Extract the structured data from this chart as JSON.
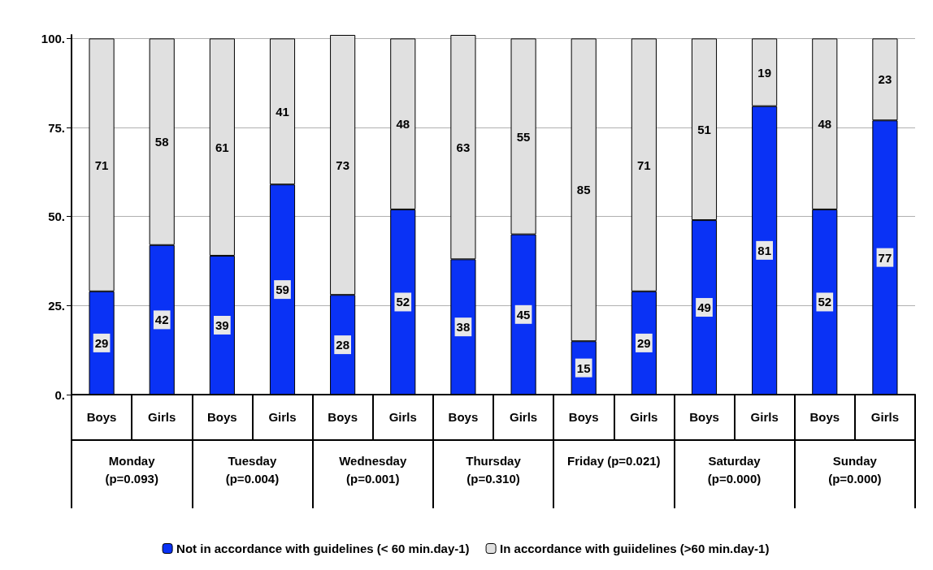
{
  "chart_data": {
    "type": "bar",
    "stacked": true,
    "categories": [
      "Boys",
      "Girls",
      "Boys",
      "Girls",
      "Boys",
      "Girls",
      "Boys",
      "Girls",
      "Boys",
      "Girls",
      "Boys",
      "Girls",
      "Boys",
      "Girls"
    ],
    "annotations": [
      "Monday\n(p=0.093)",
      "Tuesday\n(p=0.004)",
      "Wednesday\n(p=0.001)",
      "Thursday\n(p=0.310)",
      "Friday (p=0.021)",
      "Saturday\n(p=0.000)",
      "Sunday\n(p=0.000)"
    ],
    "series": [
      {
        "name": "Not in accordance with guidelines (< 60 min.day-1)",
        "color": "#0a32f5",
        "values": [
          29,
          42,
          39,
          59,
          28,
          52,
          38,
          45,
          15,
          29,
          49,
          81,
          52,
          77
        ]
      },
      {
        "name": "In accordance with guiidelines (>60 min.day-1)",
        "color": "#e0e0e0",
        "values": [
          71,
          58,
          61,
          41,
          73,
          48,
          63,
          55,
          85,
          71,
          51,
          19,
          48,
          23
        ]
      }
    ],
    "ylim": [
      0,
      101
    ],
    "yticks": [
      {
        "value": 0,
        "label": "0."
      },
      {
        "value": 25,
        "label": "25."
      },
      {
        "value": 50,
        "label": "50."
      },
      {
        "value": 75,
        "label": "75."
      },
      {
        "value": 100,
        "label": "100."
      }
    ],
    "grid": "y",
    "legend": "bottom",
    "data_labels": true
  }
}
